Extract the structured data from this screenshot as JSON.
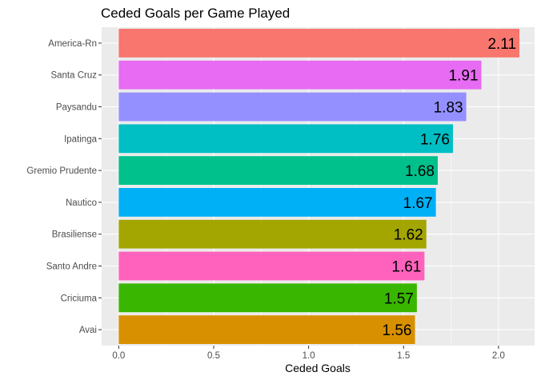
{
  "chart_data": {
    "type": "bar",
    "orientation": "horizontal",
    "title": "Ceded Goals per Game Played",
    "xlabel": "Ceded Goals",
    "ylabel": "",
    "xlim": [
      -0.09,
      2.19
    ],
    "x_ticks": [
      0.0,
      0.5,
      1.0,
      1.5,
      2.0
    ],
    "x_tick_labels": [
      "0.0",
      "0.5",
      "1.0",
      "1.5",
      "2.0"
    ],
    "grid": true,
    "legend": "none",
    "categories": [
      "America-Rn",
      "Santa Cruz",
      "Paysandu",
      "Ipatinga",
      "Gremio Prudente",
      "Nautico",
      "Brasiliense",
      "Santo Andre",
      "Criciuma",
      "Avai"
    ],
    "values": [
      2.11,
      1.91,
      1.83,
      1.76,
      1.68,
      1.67,
      1.62,
      1.61,
      1.57,
      1.56
    ],
    "value_labels": [
      "2.11",
      "1.91",
      "1.83",
      "1.76",
      "1.68",
      "1.67",
      "1.62",
      "1.61",
      "1.57",
      "1.56"
    ],
    "colors": [
      "#F8766D",
      "#E76BF3",
      "#9590FF",
      "#00BFC4",
      "#00C08B",
      "#00B0F6",
      "#A3A500",
      "#FF62BC",
      "#39B600",
      "#D89000"
    ],
    "panel_background": "#EBEBEB",
    "grid_color": "#FFFFFF"
  }
}
